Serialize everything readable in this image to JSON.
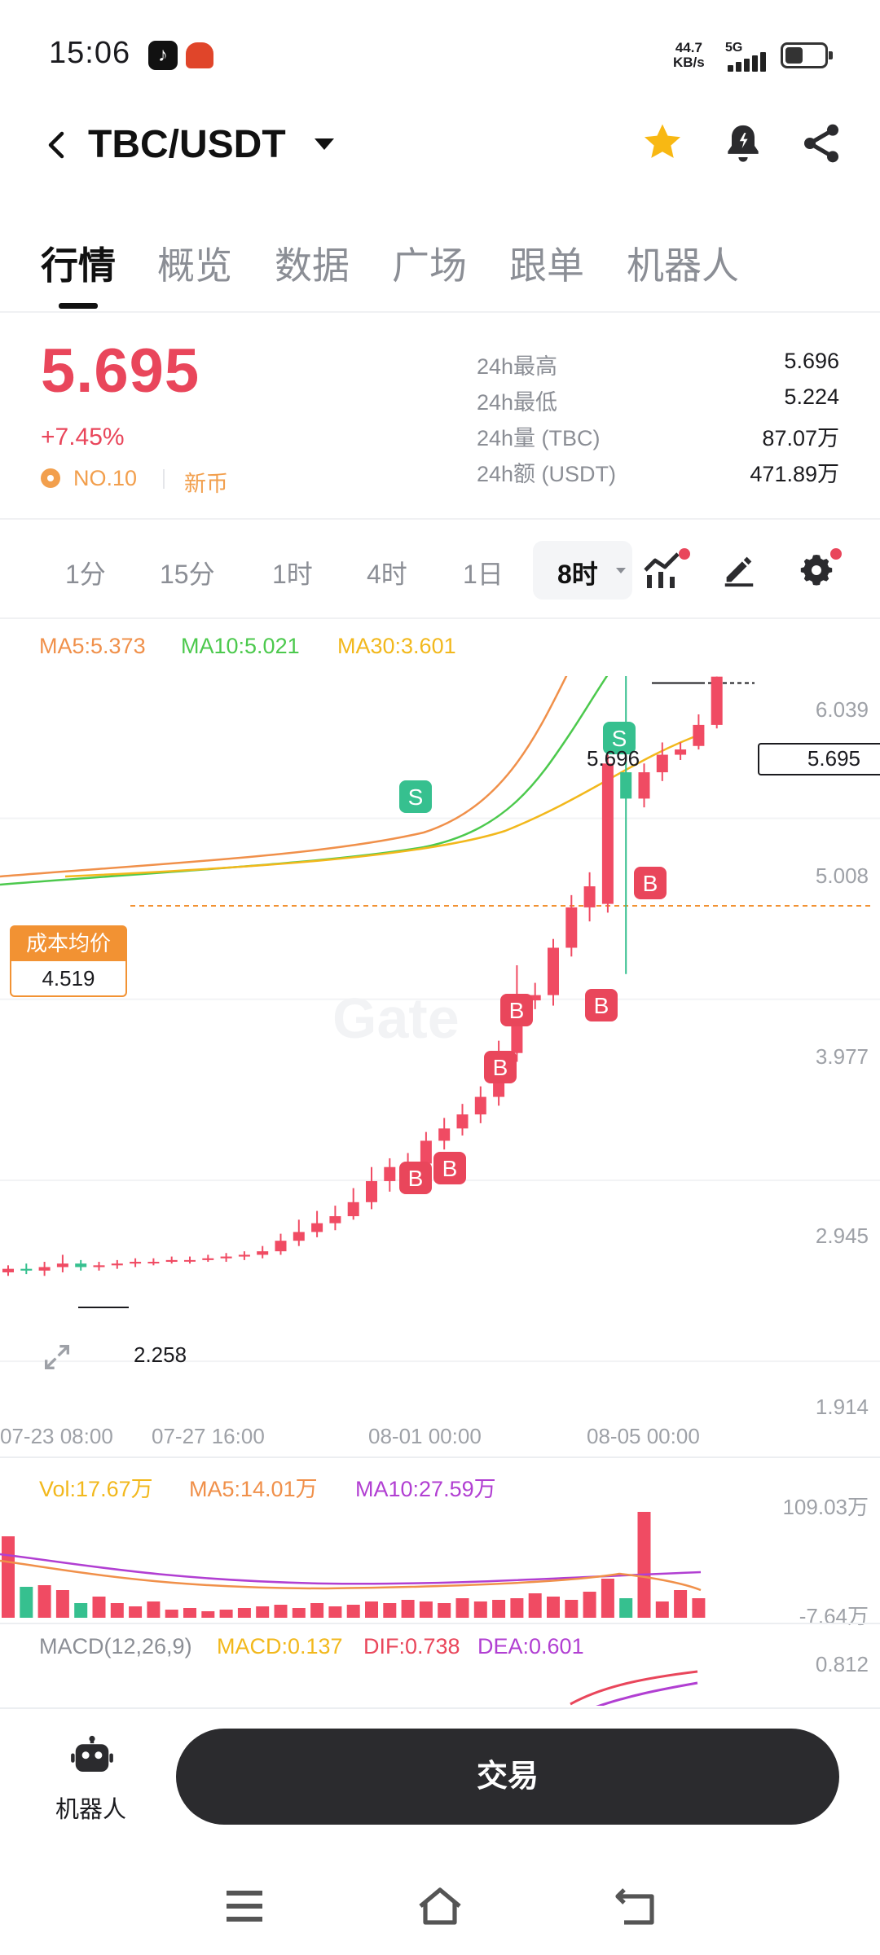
{
  "status_bar": {
    "time": "15:06",
    "net_speed_value": "44.7",
    "net_speed_unit": "KB/s",
    "network": "5G",
    "battery_level": 0.45
  },
  "header": {
    "pair": "TBC/USDT",
    "favorite_color": "#f8b813"
  },
  "tabs": [
    "行情",
    "概览",
    "数据",
    "广场",
    "跟单",
    "机器人"
  ],
  "active_tab_index": 0,
  "price": {
    "last": "5.695",
    "change": "+7.45%",
    "rank": "NO.10",
    "tag": "新币",
    "up_color": "#e9465b",
    "stats": [
      {
        "label": "24h最高",
        "value": "5.696"
      },
      {
        "label": "24h最低",
        "value": "5.224"
      },
      {
        "label": "24h量 (TBC)",
        "value": "87.07万"
      },
      {
        "label": "24h额 (USDT)",
        "value": "471.89万"
      }
    ]
  },
  "intervals": [
    "1分",
    "15分",
    "1时",
    "4时",
    "1日",
    "8时"
  ],
  "selected_interval": "8时",
  "ma_legend": {
    "ma5": "MA5:5.373",
    "ma10": "MA10:5.021",
    "ma30": "MA30:3.601"
  },
  "chart_data": {
    "type": "candlestick",
    "y_axis_ticks": [
      "6.039",
      "5.008",
      "3.977",
      "2.945",
      "1.914"
    ],
    "x_axis_ticks": [
      "07-23 08:00",
      "07-27 16:00",
      "08-01 00:00",
      "08-05 00:00"
    ],
    "high_label": "5.696",
    "low_label": "2.258",
    "last_price_label": "5.695",
    "cost_label": "成本均价",
    "cost_value": "4.519",
    "trade_markers": {
      "buy": "B",
      "sell": "S"
    },
    "volume_legend": {
      "vol": "Vol:17.67万",
      "ma5": "MA5:14.01万",
      "ma10": "MA10:27.59万"
    },
    "volume_ticks": [
      "109.03万",
      "-7.64万"
    ],
    "macd_legend": {
      "title": "MACD(12,26,9)",
      "macd": "MACD:0.137",
      "dif": "DIF:0.738",
      "dea": "DEA:0.601"
    },
    "macd_tick": "0.812"
  },
  "bottom": {
    "robot_label": "机器人",
    "trade_button": "交易"
  }
}
